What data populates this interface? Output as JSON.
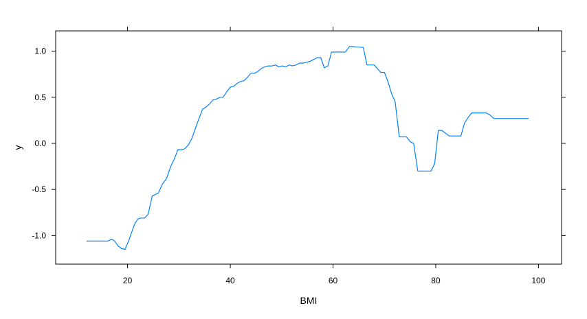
{
  "chart_data": {
    "type": "line",
    "xlabel": "BMI",
    "ylabel": "y",
    "xlim": [
      6.0,
      104.5
    ],
    "ylim": [
      -1.31,
      1.22
    ],
    "x_ticks": [
      20,
      40,
      60,
      80,
      100
    ],
    "y_ticks": [
      -1.0,
      -0.5,
      0.0,
      0.5,
      1.0
    ],
    "x_tick_labels": [
      "20",
      "40",
      "60",
      "80",
      "100"
    ],
    "y_tick_labels": [
      "-1.0",
      "-0.5",
      "0.0",
      "0.5",
      "1.0"
    ],
    "grid": false,
    "line_color": "#0080ff",
    "series": [
      {
        "x": [
          12.0,
          16.2,
          16.9,
          17.5,
          18.1,
          18.8,
          19.5,
          20.2,
          20.7,
          21.4,
          22.0,
          22.6,
          23.3,
          24.0,
          24.8,
          25.2,
          26.0,
          26.8,
          27.6,
          28.4,
          29.1,
          29.8,
          30.5,
          31.1,
          31.8,
          32.5,
          33.2,
          33.9,
          34.6,
          35.2,
          36.0,
          36.6,
          37.3,
          38.0,
          38.6,
          39.3,
          40.0,
          40.7,
          41.3,
          42.0,
          42.7,
          43.4,
          44.0,
          44.7,
          45.4,
          46.0,
          46.7,
          47.4,
          48.1,
          48.8,
          49.4,
          50.1,
          50.8,
          51.5,
          52.1,
          52.8,
          53.5,
          54.2,
          54.9,
          55.6,
          56.9,
          57.6,
          58.3,
          59.0,
          59.7,
          62.4,
          63.2,
          63.8,
          65.9,
          66.6,
          67.3,
          68.0,
          69.3,
          70.0,
          70.7,
          71.4,
          72.1,
          72.9,
          74.3,
          75.0,
          75.7,
          76.5,
          79.1,
          79.8,
          80.5,
          81.2,
          81.9,
          82.6,
          84.9,
          85.6,
          86.3,
          87.0,
          89.8,
          90.5,
          91.3,
          98.1
        ],
        "y": [
          -1.06,
          -1.06,
          -1.04,
          -1.06,
          -1.11,
          -1.14,
          -1.15,
          -1.06,
          -0.98,
          -0.87,
          -0.82,
          -0.81,
          -0.81,
          -0.77,
          -0.57,
          -0.56,
          -0.54,
          -0.44,
          -0.38,
          -0.25,
          -0.17,
          -0.07,
          -0.07,
          -0.06,
          -0.02,
          0.05,
          0.16,
          0.27,
          0.37,
          0.39,
          0.43,
          0.47,
          0.48,
          0.5,
          0.5,
          0.56,
          0.61,
          0.62,
          0.65,
          0.67,
          0.68,
          0.72,
          0.76,
          0.76,
          0.78,
          0.81,
          0.83,
          0.84,
          0.84,
          0.85,
          0.83,
          0.84,
          0.83,
          0.85,
          0.84,
          0.85,
          0.87,
          0.87,
          0.88,
          0.89,
          0.93,
          0.93,
          0.82,
          0.84,
          0.99,
          0.99,
          1.05,
          1.05,
          1.04,
          0.85,
          0.85,
          0.85,
          0.77,
          0.77,
          0.67,
          0.54,
          0.45,
          0.07,
          0.07,
          0.02,
          0.0,
          -0.3,
          -0.3,
          -0.22,
          0.14,
          0.14,
          0.11,
          0.08,
          0.08,
          0.22,
          0.28,
          0.33,
          0.33,
          0.31,
          0.27,
          0.27
        ]
      }
    ]
  }
}
